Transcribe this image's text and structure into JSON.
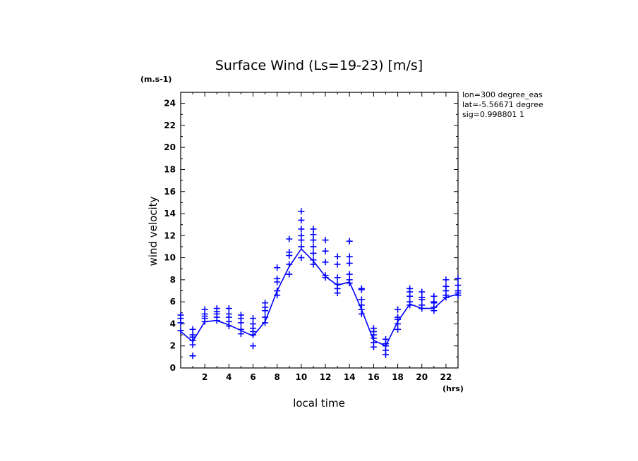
{
  "chart_data": {
    "type": "scatter",
    "title": "Surface Wind  (Ls=19-23) [m/s]",
    "xlabel": "local time",
    "ylabel": "wind velocity",
    "x_unit": "(hrs)",
    "y_unit": "(m.s-1)",
    "xlim": [
      0,
      23
    ],
    "ylim": [
      0,
      25
    ],
    "x_ticks": [
      2,
      4,
      6,
      8,
      10,
      12,
      14,
      16,
      18,
      20,
      22
    ],
    "y_ticks": [
      0,
      2,
      4,
      6,
      8,
      10,
      12,
      14,
      16,
      18,
      20,
      22,
      24
    ],
    "info": [
      "lon=300 degree_eas",
      "lat=-5.56671 degree",
      "sig=0.998801 1"
    ],
    "colors": {
      "series": "#0000ff",
      "axes": "#000000"
    },
    "series": [
      {
        "style": "line",
        "x": [
          0,
          1,
          2,
          3,
          4,
          5,
          6,
          7,
          8,
          9,
          10,
          11,
          12,
          13,
          14,
          15,
          16,
          17,
          18,
          19,
          20,
          21,
          22,
          23
        ],
        "y": [
          3.3,
          2.4,
          4.2,
          4.3,
          3.9,
          3.4,
          2.9,
          4.2,
          7.0,
          9.2,
          10.8,
          9.7,
          8.3,
          7.5,
          7.8,
          5.3,
          2.5,
          2.0,
          4.2,
          5.8,
          5.4,
          5.4,
          6.4,
          6.7
        ]
      },
      {
        "style": "markers",
        "marker": "+",
        "points": [
          [
            0,
            4.8
          ],
          [
            0,
            4.5
          ],
          [
            0,
            4.1
          ],
          [
            0,
            3.4
          ],
          [
            1,
            3.5
          ],
          [
            1,
            3.0
          ],
          [
            1,
            2.8
          ],
          [
            1,
            2.5
          ],
          [
            1,
            2.1
          ],
          [
            1,
            1.1
          ],
          [
            2,
            5.3
          ],
          [
            2,
            4.9
          ],
          [
            2,
            4.7
          ],
          [
            2,
            4.5
          ],
          [
            2,
            4.2
          ],
          [
            3,
            5.4
          ],
          [
            3,
            5.1
          ],
          [
            3,
            4.9
          ],
          [
            3,
            4.6
          ],
          [
            3,
            4.3
          ],
          [
            4,
            5.4
          ],
          [
            4,
            4.9
          ],
          [
            4,
            4.6
          ],
          [
            4,
            4.2
          ],
          [
            4,
            3.8
          ],
          [
            5,
            4.8
          ],
          [
            5,
            4.5
          ],
          [
            5,
            4.1
          ],
          [
            5,
            3.5
          ],
          [
            5,
            3.1
          ],
          [
            6,
            4.5
          ],
          [
            6,
            4.0
          ],
          [
            6,
            3.6
          ],
          [
            6,
            3.3
          ],
          [
            6,
            3.0
          ],
          [
            6,
            2.0
          ],
          [
            7,
            5.9
          ],
          [
            7,
            5.5
          ],
          [
            7,
            5.2
          ],
          [
            7,
            4.6
          ],
          [
            7,
            4.1
          ],
          [
            8,
            9.1
          ],
          [
            8,
            8.1
          ],
          [
            8,
            7.8
          ],
          [
            8,
            7.0
          ],
          [
            8,
            6.6
          ],
          [
            9,
            11.7
          ],
          [
            9,
            10.5
          ],
          [
            9,
            10.2
          ],
          [
            9,
            9.4
          ],
          [
            9,
            8.5
          ],
          [
            10,
            14.2
          ],
          [
            10,
            13.4
          ],
          [
            10,
            12.6
          ],
          [
            10,
            12.0
          ],
          [
            10,
            11.6
          ],
          [
            10,
            11.0
          ],
          [
            10,
            10.0
          ],
          [
            11,
            12.6
          ],
          [
            11,
            12.1
          ],
          [
            11,
            11.6
          ],
          [
            11,
            11.0
          ],
          [
            11,
            10.4
          ],
          [
            11,
            9.8
          ],
          [
            11,
            9.4
          ],
          [
            12,
            11.6
          ],
          [
            12,
            10.6
          ],
          [
            12,
            9.6
          ],
          [
            12,
            8.4
          ],
          [
            12,
            8.2
          ],
          [
            13,
            10.1
          ],
          [
            13,
            9.4
          ],
          [
            13,
            8.2
          ],
          [
            13,
            7.6
          ],
          [
            13,
            7.2
          ],
          [
            13,
            6.8
          ],
          [
            14,
            11.5
          ],
          [
            14,
            10.1
          ],
          [
            14,
            9.5
          ],
          [
            14,
            8.5
          ],
          [
            14,
            8.0
          ],
          [
            14,
            7.7
          ],
          [
            15,
            7.2
          ],
          [
            15,
            7.1
          ],
          [
            15,
            6.2
          ],
          [
            15,
            5.7
          ],
          [
            15,
            5.3
          ],
          [
            15,
            4.9
          ],
          [
            16,
            3.6
          ],
          [
            16,
            3.3
          ],
          [
            16,
            3.0
          ],
          [
            16,
            2.7
          ],
          [
            16,
            2.3
          ],
          [
            16,
            1.9
          ],
          [
            17,
            2.6
          ],
          [
            17,
            2.2
          ],
          [
            17,
            2.0
          ],
          [
            17,
            1.6
          ],
          [
            17,
            1.2
          ],
          [
            18,
            5.3
          ],
          [
            18,
            4.6
          ],
          [
            18,
            4.4
          ],
          [
            18,
            4.0
          ],
          [
            18,
            3.5
          ],
          [
            19,
            7.2
          ],
          [
            19,
            6.9
          ],
          [
            19,
            6.5
          ],
          [
            19,
            6.0
          ],
          [
            19,
            5.7
          ],
          [
            20,
            6.9
          ],
          [
            20,
            6.4
          ],
          [
            20,
            6.2
          ],
          [
            20,
            5.7
          ],
          [
            20,
            5.4
          ],
          [
            21,
            6.5
          ],
          [
            21,
            6.0
          ],
          [
            21,
            5.9
          ],
          [
            21,
            5.5
          ],
          [
            21,
            5.2
          ],
          [
            22,
            8.0
          ],
          [
            22,
            7.4
          ],
          [
            22,
            7.0
          ],
          [
            22,
            6.6
          ],
          [
            22,
            6.4
          ],
          [
            23,
            8.1
          ],
          [
            23,
            7.5
          ],
          [
            23,
            7.0
          ],
          [
            23,
            6.8
          ],
          [
            23,
            6.6
          ]
        ]
      }
    ]
  }
}
